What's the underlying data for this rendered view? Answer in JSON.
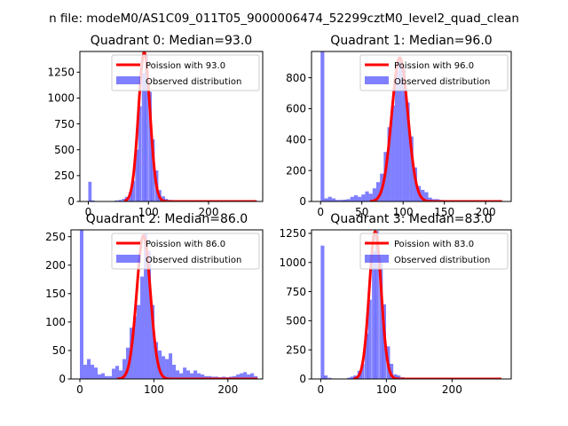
{
  "figure_title": "n file: modeM0/AS1C09_011T05_9000006474_52299cztM0_level2_quad_clean",
  "colors": {
    "poisson": "#ff0000",
    "observed": "#0000ff",
    "axis": "#000000",
    "background": "#ffffff"
  },
  "chart_data": [
    {
      "type": "bar",
      "title": "Quadrant 0: Median=93.0",
      "legend": {
        "placement": "upper-right",
        "entries": [
          "Poission with 93.0",
          "Observed distribution"
        ]
      },
      "xlim": [
        -14,
        290
      ],
      "ylim": [
        0,
        1450
      ],
      "xticks": [
        0,
        100,
        200
      ],
      "xtick_labels": [
        "0",
        "100",
        "200"
      ],
      "yticks": [
        0,
        250,
        500,
        750,
        1000,
        1250
      ],
      "ytick_labels": [
        "0",
        "250",
        "500",
        "750",
        "1000",
        "1250"
      ],
      "bin_width": 5.5,
      "poisson_mean": 93.0,
      "poisson_peak": 1440,
      "poisson_range": [
        60,
        280
      ],
      "bins": [
        [
          0,
          190
        ],
        [
          5,
          10
        ],
        [
          44,
          10
        ],
        [
          50,
          15
        ],
        [
          56,
          25
        ],
        [
          61,
          45
        ],
        [
          67,
          90
        ],
        [
          72,
          200
        ],
        [
          78,
          500
        ],
        [
          83,
          920
        ],
        [
          89,
          1240
        ],
        [
          94,
          1420
        ],
        [
          100,
          1060
        ],
        [
          105,
          600
        ],
        [
          111,
          300
        ],
        [
          116,
          110
        ],
        [
          122,
          50
        ],
        [
          127,
          25
        ],
        [
          133,
          15
        ],
        [
          138,
          10
        ],
        [
          144,
          8
        ],
        [
          155,
          6
        ],
        [
          166,
          5
        ],
        [
          177,
          5
        ],
        [
          188,
          6
        ],
        [
          199,
          5
        ],
        [
          210,
          5
        ],
        [
          221,
          4
        ],
        [
          232,
          4
        ],
        [
          243,
          4
        ],
        [
          254,
          3
        ],
        [
          265,
          3
        ],
        [
          276,
          3
        ]
      ]
    },
    {
      "type": "bar",
      "title": "Quadrant 1: Median=96.0",
      "legend": {
        "placement": "upper-right",
        "entries": [
          "Poission with 96.0",
          "Observed distribution"
        ]
      },
      "xlim": [
        -11,
        231
      ],
      "ylim": [
        0,
        970
      ],
      "xticks": [
        0,
        50,
        100,
        150,
        200
      ],
      "xtick_labels": [
        "0",
        "50",
        "100",
        "150",
        "200"
      ],
      "yticks": [
        0,
        200,
        400,
        600,
        800
      ],
      "ytick_labels": [
        "0",
        "200",
        "400",
        "600",
        "800"
      ],
      "bin_width": 4.5,
      "poisson_mean": 96.0,
      "poisson_peak": 930,
      "poisson_range": [
        60,
        220
      ],
      "bins": [
        [
          0,
          970
        ],
        [
          4.5,
          20
        ],
        [
          9,
          30
        ],
        [
          13.5,
          20
        ],
        [
          18,
          10
        ],
        [
          22.5,
          10
        ],
        [
          27,
          12
        ],
        [
          31.5,
          15
        ],
        [
          36,
          30
        ],
        [
          40.5,
          40
        ],
        [
          45,
          30
        ],
        [
          49.5,
          45
        ],
        [
          54,
          65
        ],
        [
          58.5,
          50
        ],
        [
          63,
          85
        ],
        [
          67.5,
          125
        ],
        [
          72,
          180
        ],
        [
          76.5,
          320
        ],
        [
          81,
          480
        ],
        [
          85.5,
          620
        ],
        [
          90,
          840
        ],
        [
          94.5,
          910
        ],
        [
          99,
          860
        ],
        [
          103.5,
          640
        ],
        [
          108,
          420
        ],
        [
          112.5,
          220
        ],
        [
          117,
          100
        ],
        [
          121.5,
          75
        ],
        [
          126,
          60
        ],
        [
          130.5,
          25
        ],
        [
          135,
          15
        ],
        [
          139.5,
          15
        ],
        [
          144,
          10
        ],
        [
          153,
          8
        ],
        [
          162,
          6
        ],
        [
          171,
          5
        ],
        [
          180,
          5
        ],
        [
          189,
          4
        ],
        [
          198,
          4
        ],
        [
          207,
          3
        ],
        [
          216,
          3
        ]
      ]
    },
    {
      "type": "bar",
      "title": "Quadrant 2: Median=86.0",
      "legend": {
        "placement": "upper-right",
        "entries": [
          "Poission with 86.0",
          "Observed distribution"
        ]
      },
      "xlim": [
        -12,
        247
      ],
      "ylim": [
        0,
        262
      ],
      "xticks": [
        0,
        100,
        200
      ],
      "xtick_labels": [
        "0",
        "100",
        "200"
      ],
      "yticks": [
        0,
        50,
        100,
        150,
        200,
        250
      ],
      "ytick_labels": [
        "0",
        "50",
        "100",
        "150",
        "200",
        "250"
      ],
      "bin_width": 4.8,
      "poisson_mean": 86.0,
      "poisson_peak": 252,
      "poisson_range": [
        50,
        240
      ],
      "bins": [
        [
          0,
          262
        ],
        [
          4.8,
          25
        ],
        [
          9.6,
          35
        ],
        [
          14.4,
          25
        ],
        [
          19.2,
          20
        ],
        [
          24,
          8
        ],
        [
          28.8,
          10
        ],
        [
          33.6,
          5
        ],
        [
          38.4,
          5
        ],
        [
          43.2,
          18
        ],
        [
          48,
          23
        ],
        [
          52.8,
          15
        ],
        [
          57.6,
          35
        ],
        [
          62.4,
          55
        ],
        [
          67.2,
          90
        ],
        [
          72,
          110
        ],
        [
          76.8,
          130
        ],
        [
          81.6,
          180
        ],
        [
          86.4,
          255
        ],
        [
          91.2,
          225
        ],
        [
          96,
          130
        ],
        [
          100.8,
          65
        ],
        [
          105.6,
          50
        ],
        [
          110.4,
          40
        ],
        [
          115.2,
          35
        ],
        [
          120,
          45
        ],
        [
          124.8,
          25
        ],
        [
          129.6,
          15
        ],
        [
          134.4,
          10
        ],
        [
          139.2,
          20
        ],
        [
          144,
          15
        ],
        [
          148.8,
          10
        ],
        [
          153.6,
          15
        ],
        [
          158.4,
          10
        ],
        [
          163.2,
          8
        ],
        [
          168,
          5
        ],
        [
          172.8,
          5
        ],
        [
          177.6,
          4
        ],
        [
          182.4,
          4
        ],
        [
          187.2,
          3
        ],
        [
          192,
          4
        ],
        [
          196.8,
          3
        ],
        [
          201.6,
          4
        ],
        [
          206.4,
          5
        ],
        [
          211.2,
          8
        ],
        [
          216,
          10
        ],
        [
          220.8,
          12
        ],
        [
          225.6,
          8
        ],
        [
          230.4,
          10
        ],
        [
          235.2,
          5
        ]
      ]
    },
    {
      "type": "bar",
      "title": "Quadrant 3: Median=83.0",
      "legend": {
        "placement": "upper-right",
        "entries": [
          "Poission with 83.0",
          "Observed distribution"
        ]
      },
      "xlim": [
        -14,
        290
      ],
      "ylim": [
        0,
        1280
      ],
      "xticks": [
        0,
        100,
        200
      ],
      "xtick_labels": [
        "0",
        "100",
        "200"
      ],
      "yticks": [
        0,
        250,
        500,
        750,
        1000,
        1250
      ],
      "ytick_labels": [
        "0",
        "250",
        "500",
        "750",
        "1000",
        "1250"
      ],
      "bin_width": 5.5,
      "poisson_mean": 83.0,
      "poisson_peak": 1265,
      "poisson_range": [
        50,
        275
      ],
      "bins": [
        [
          0,
          1145
        ],
        [
          5,
          30
        ],
        [
          11,
          10
        ],
        [
          40,
          10
        ],
        [
          45,
          20
        ],
        [
          50,
          30
        ],
        [
          56,
          70
        ],
        [
          61,
          130
        ],
        [
          67,
          390
        ],
        [
          72,
          680
        ],
        [
          78,
          1100
        ],
        [
          83,
          1270
        ],
        [
          89,
          1000
        ],
        [
          94,
          640
        ],
        [
          100,
          280
        ],
        [
          105,
          130
        ],
        [
          111,
          40
        ],
        [
          116,
          30
        ],
        [
          122,
          15
        ],
        [
          127,
          10
        ],
        [
          133,
          8
        ],
        [
          144,
          5
        ],
        [
          166,
          4
        ],
        [
          188,
          3
        ],
        [
          210,
          3
        ],
        [
          232,
          3
        ],
        [
          254,
          3
        ],
        [
          276,
          3
        ]
      ]
    }
  ]
}
